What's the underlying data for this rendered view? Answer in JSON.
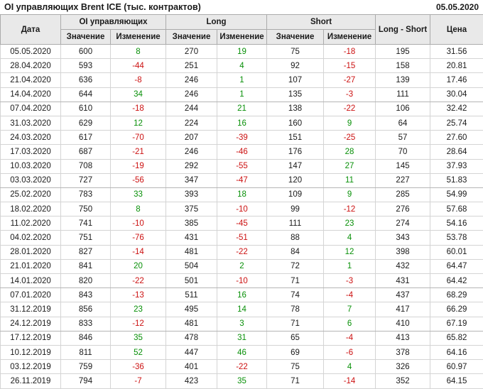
{
  "page": {
    "title": "OI управляющих Brent ICE (тыс. контрактов)",
    "as_of_date": "05.05.2020"
  },
  "table": {
    "group_headers": {
      "date": "Дата",
      "oi": "OI управляющих",
      "long": "Long",
      "short": "Short",
      "long_short": "Long - Short",
      "price": "Цена"
    },
    "sub_headers": {
      "value": "Значение",
      "change": "Изменение"
    }
  },
  "colors": {
    "positive_change": "#089008",
    "negative_change": "#cc1111",
    "header_bg": "#e9e9e9",
    "grid_border": "#d4d4d4",
    "header_border": "#ababab"
  },
  "chart_data": {
    "type": "table",
    "title": "OI управляющих Brent ICE (тыс. контрактов)",
    "as_of_date": "05.05.2020",
    "units": "тыс. контрактов",
    "columns": [
      "Дата",
      "OI управляющих Значение",
      "OI управляющих Изменение",
      "Long Значение",
      "Long Изменение",
      "Short Значение",
      "Short Изменение",
      "Long - Short",
      "Цена"
    ],
    "rows": [
      [
        "05.05.2020",
        600,
        8,
        270,
        19,
        75,
        -18,
        195,
        "31.56"
      ],
      [
        "28.04.2020",
        593,
        -44,
        251,
        4,
        92,
        -15,
        158,
        "20.81"
      ],
      [
        "21.04.2020",
        636,
        -8,
        246,
        1,
        107,
        -27,
        139,
        "17.46"
      ],
      [
        "14.04.2020",
        644,
        34,
        246,
        1,
        135,
        -3,
        111,
        "30.04"
      ],
      [
        "07.04.2020",
        610,
        -18,
        244,
        21,
        138,
        -22,
        106,
        "32.42"
      ],
      [
        "31.03.2020",
        629,
        12,
        224,
        16,
        160,
        9,
        64,
        "25.74"
      ],
      [
        "24.03.2020",
        617,
        -70,
        207,
        -39,
        151,
        -25,
        57,
        "27.60"
      ],
      [
        "17.03.2020",
        687,
        -21,
        246,
        -46,
        176,
        28,
        70,
        "28.64"
      ],
      [
        "10.03.2020",
        708,
        -19,
        292,
        -55,
        147,
        27,
        145,
        "37.93"
      ],
      [
        "03.03.2020",
        727,
        -56,
        347,
        -47,
        120,
        11,
        227,
        "51.83"
      ],
      [
        "25.02.2020",
        783,
        33,
        393,
        18,
        109,
        9,
        285,
        "54.99"
      ],
      [
        "18.02.2020",
        750,
        8,
        375,
        -10,
        99,
        -12,
        276,
        "57.68"
      ],
      [
        "11.02.2020",
        741,
        -10,
        385,
        -45,
        111,
        23,
        274,
        "54.16"
      ],
      [
        "04.02.2020",
        751,
        -76,
        431,
        -51,
        88,
        4,
        343,
        "53.78"
      ],
      [
        "28.01.2020",
        827,
        -14,
        481,
        -22,
        84,
        12,
        398,
        "60.01"
      ],
      [
        "21.01.2020",
        841,
        20,
        504,
        2,
        72,
        1,
        432,
        "64.47"
      ],
      [
        "14.01.2020",
        820,
        -22,
        501,
        -10,
        71,
        -3,
        431,
        "64.42"
      ],
      [
        "07.01.2020",
        843,
        -13,
        511,
        16,
        74,
        -4,
        437,
        "68.29"
      ],
      [
        "31.12.2019",
        856,
        23,
        495,
        14,
        78,
        7,
        417,
        "66.29"
      ],
      [
        "24.12.2019",
        833,
        -12,
        481,
        3,
        71,
        6,
        410,
        "67.19"
      ],
      [
        "17.12.2019",
        846,
        35,
        478,
        31,
        65,
        -4,
        413,
        "65.82"
      ],
      [
        "10.12.2019",
        811,
        52,
        447,
        46,
        69,
        -6,
        378,
        "64.16"
      ],
      [
        "03.12.2019",
        759,
        -36,
        401,
        -22,
        75,
        4,
        326,
        "60.97"
      ],
      [
        "26.11.2019",
        794,
        -7,
        423,
        35,
        71,
        -14,
        352,
        "64.15"
      ]
    ]
  }
}
